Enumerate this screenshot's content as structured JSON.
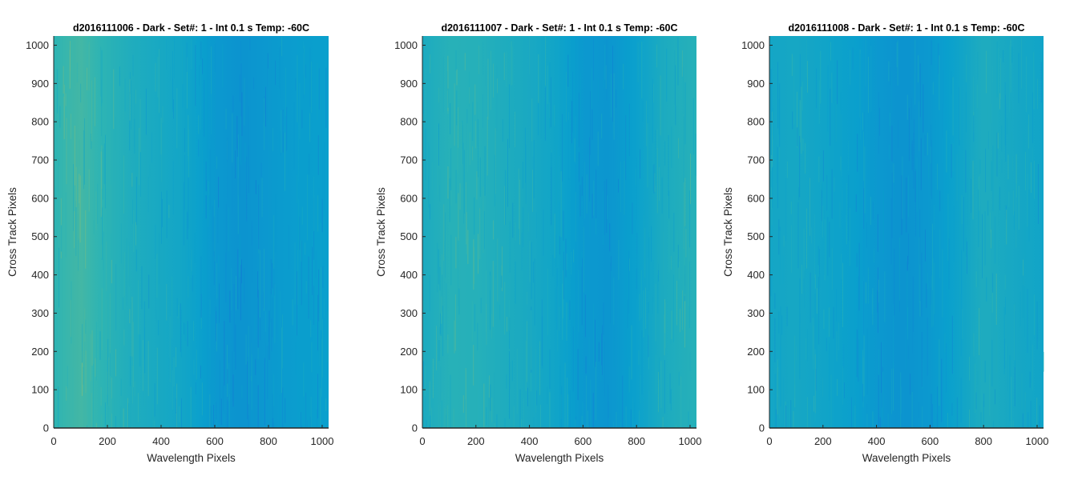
{
  "chart_data": [
    {
      "type": "heatmap",
      "title": "d2016111006 - Dark - Set#: 1 - Int 0.1 s Temp: -60C",
      "xlabel": "Wavelength Pixels",
      "ylabel": "Cross Track Pixels",
      "xlim": [
        0,
        1024
      ],
      "ylim": [
        0,
        1024
      ],
      "xticks": [
        0,
        200,
        400,
        600,
        800,
        1000
      ],
      "yticks": [
        0,
        100,
        200,
        300,
        400,
        500,
        600,
        700,
        800,
        900,
        1000
      ],
      "colormap": "parula",
      "intensity_profile": {
        "x": [
          0,
          100,
          200,
          300,
          400,
          500,
          600,
          700,
          800,
          900,
          1024
        ],
        "level": [
          0.6,
          0.66,
          0.58,
          0.5,
          0.45,
          0.4,
          0.3,
          0.26,
          0.3,
          0.33,
          0.35
        ]
      }
    },
    {
      "type": "heatmap",
      "title": "d2016111007 - Dark - Set#: 1 - Int 0.1 s Temp: -60C",
      "xlabel": "Wavelength Pixels",
      "ylabel": "Cross Track Pixels",
      "xlim": [
        0,
        1024
      ],
      "ylim": [
        0,
        1024
      ],
      "xticks": [
        0,
        200,
        400,
        600,
        800,
        1000
      ],
      "yticks": [
        0,
        100,
        200,
        300,
        400,
        500,
        600,
        700,
        800,
        900,
        1000
      ],
      "colormap": "parula",
      "intensity_profile": {
        "x": [
          0,
          100,
          200,
          300,
          400,
          500,
          600,
          700,
          800,
          900,
          1024
        ],
        "level": [
          0.48,
          0.56,
          0.55,
          0.5,
          0.46,
          0.4,
          0.3,
          0.28,
          0.36,
          0.48,
          0.56
        ]
      }
    },
    {
      "type": "heatmap",
      "title": "d2016111008 - Dark - Set#: 1 - Int 0.1 s Temp: -60C",
      "xlabel": "Wavelength Pixels",
      "ylabel": "Cross Track Pixels",
      "xlim": [
        0,
        1024
      ],
      "ylim": [
        0,
        1024
      ],
      "xticks": [
        0,
        200,
        400,
        600,
        800,
        1000
      ],
      "yticks": [
        0,
        100,
        200,
        300,
        400,
        500,
        600,
        700,
        800,
        900,
        1000
      ],
      "colormap": "parula",
      "intensity_profile": {
        "x": [
          0,
          100,
          200,
          300,
          400,
          500,
          600,
          700,
          800,
          900,
          1024
        ],
        "level": [
          0.42,
          0.44,
          0.4,
          0.36,
          0.3,
          0.26,
          0.3,
          0.38,
          0.5,
          0.45,
          0.4
        ]
      }
    }
  ]
}
